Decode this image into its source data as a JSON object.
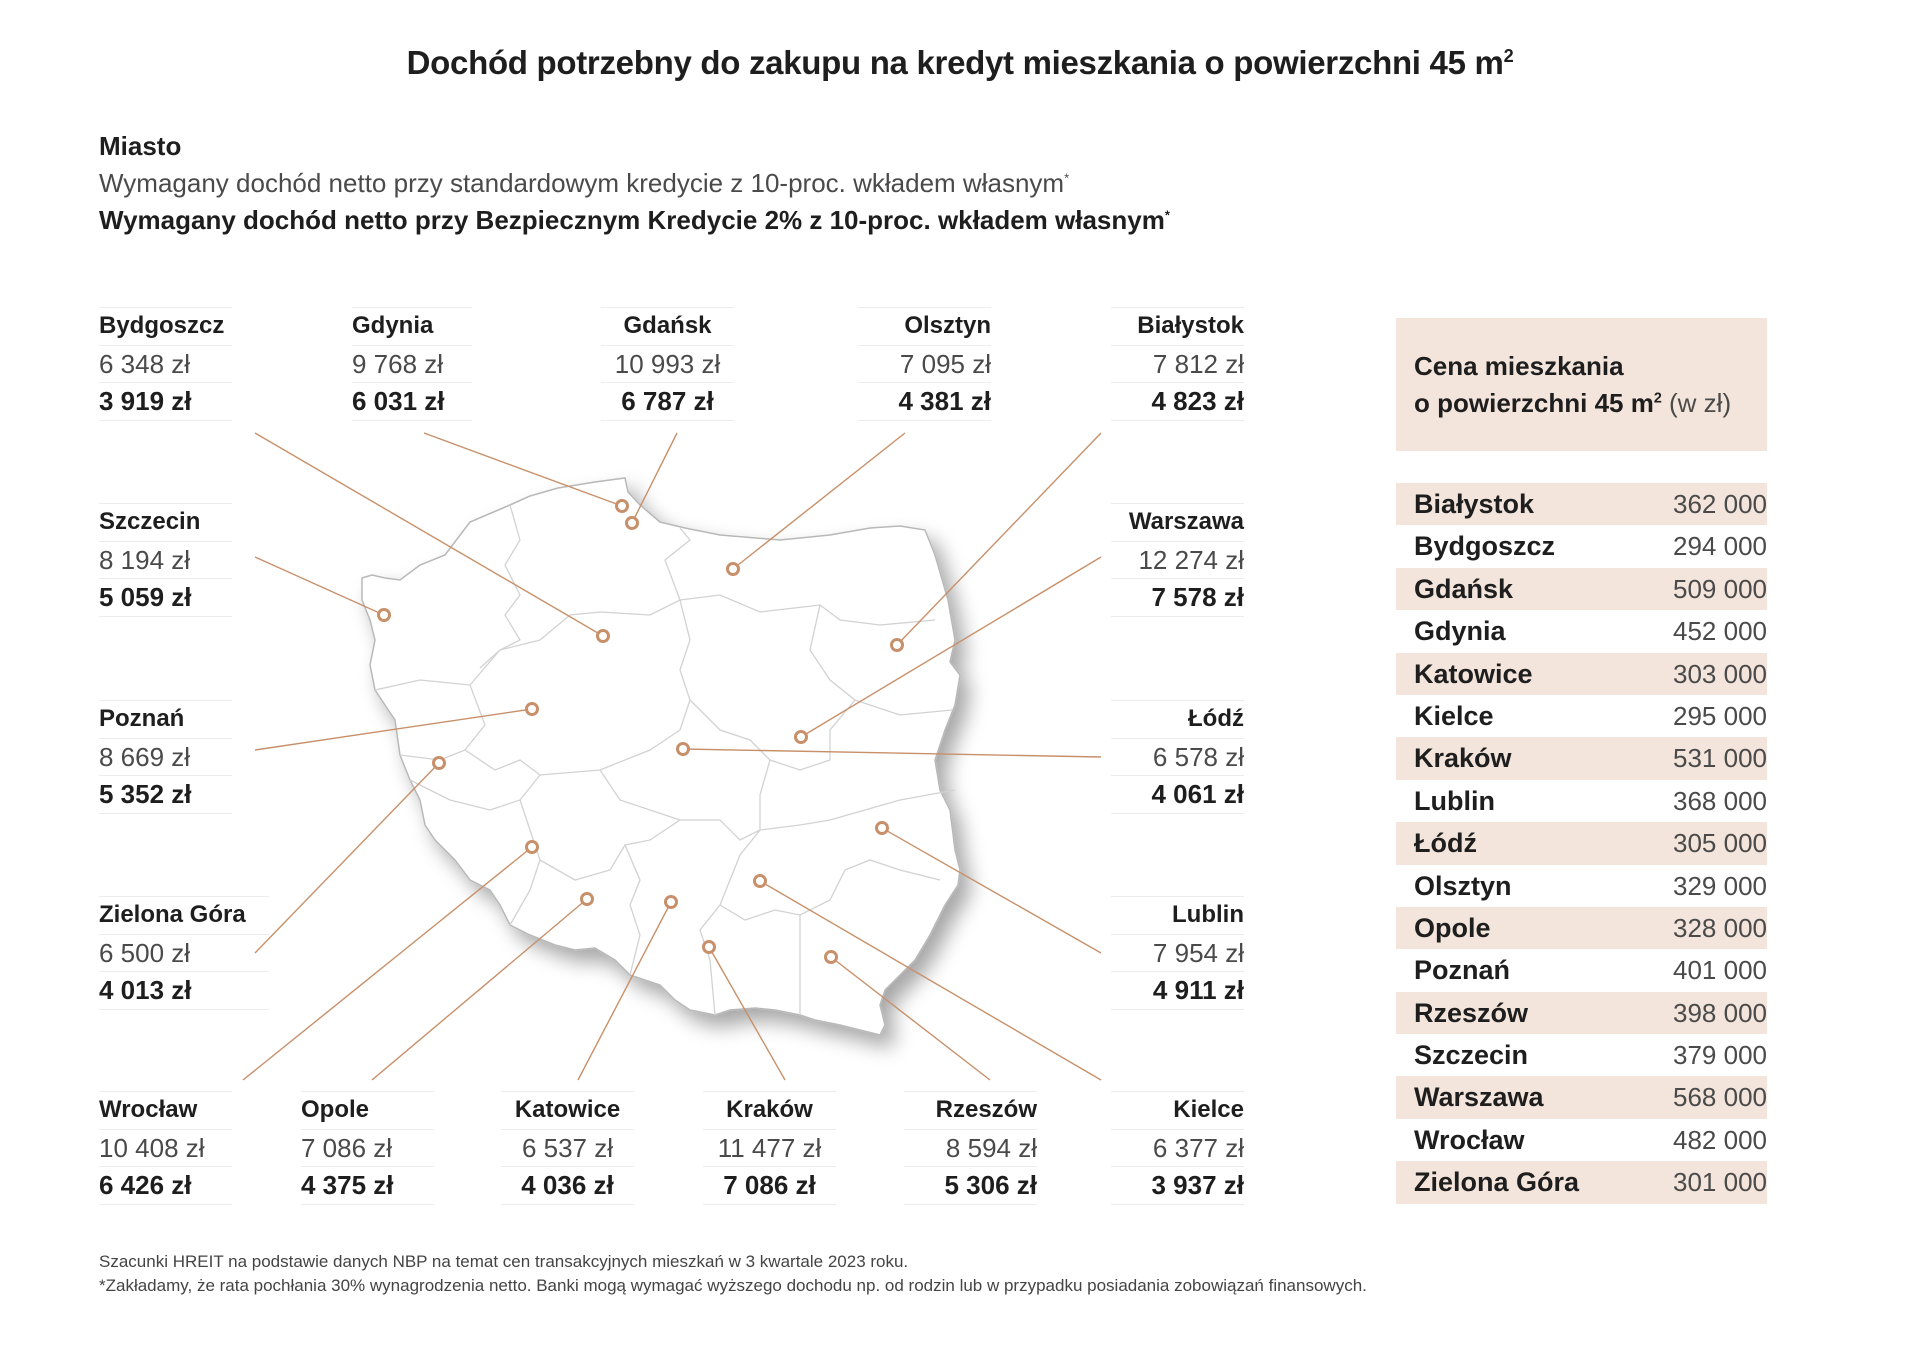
{
  "title": "Dochód potrzebny do zakupu na kredyt mieszkania o powierzchni 45 m",
  "title_sup": "2",
  "legend": {
    "city_label": "Miasto",
    "standard_label": "Wymagany dochód netto przy standardowym kredycie z 10-proc. wkładem własnym",
    "safe_label": "Wymagany dochód netto przy Bezpiecznym Kredycie 2% z 10-proc. wkładem własnym",
    "asterisk": "*"
  },
  "cities": [
    {
      "key": "bydgoszcz",
      "name": "Bydgoszcz",
      "standard": "6 348 zł",
      "safe": "3 919 zł"
    },
    {
      "key": "gdynia",
      "name": "Gdynia",
      "standard": "9 768 zł",
      "safe": "6 031 zł"
    },
    {
      "key": "gdansk",
      "name": "Gdańsk",
      "standard": "10 993 zł",
      "safe": "6 787 zł"
    },
    {
      "key": "olsztyn",
      "name": "Olsztyn",
      "standard": "7 095 zł",
      "safe": "4 381 zł"
    },
    {
      "key": "bialystok",
      "name": "Białystok",
      "standard": "7 812 zł",
      "safe": "4 823 zł"
    },
    {
      "key": "szczecin",
      "name": "Szczecin",
      "standard": "8 194 zł",
      "safe": "5 059 zł"
    },
    {
      "key": "warszawa",
      "name": "Warszawa",
      "standard": "12 274 zł",
      "safe": "7 578 zł"
    },
    {
      "key": "poznan",
      "name": "Poznań",
      "standard": "8 669 zł",
      "safe": "5 352 zł"
    },
    {
      "key": "lodz",
      "name": "Łódź",
      "standard": "6 578 zł",
      "safe": "4 061 zł"
    },
    {
      "key": "zielona_gora",
      "name": "Zielona Góra",
      "standard": "6 500 zł",
      "safe": "4 013 zł"
    },
    {
      "key": "lublin",
      "name": "Lublin",
      "standard": "7 954 zł",
      "safe": "4 911 zł"
    },
    {
      "key": "wroclaw",
      "name": "Wrocław",
      "standard": "10 408 zł",
      "safe": "6 426 zł"
    },
    {
      "key": "opole",
      "name": "Opole",
      "standard": "7 086 zł",
      "safe": "4 375 zł"
    },
    {
      "key": "katowice",
      "name": "Katowice",
      "standard": "6 537 zł",
      "safe": "4 036 zł"
    },
    {
      "key": "krakow",
      "name": "Kraków",
      "standard": "11 477 zł",
      "safe": "7 086 zł"
    },
    {
      "key": "rzeszow",
      "name": "Rzeszów",
      "standard": "8 594 zł",
      "safe": "5 306 zł"
    },
    {
      "key": "kielce",
      "name": "Kielce",
      "standard": "6 377 zł",
      "safe": "3 937 zł"
    }
  ],
  "price_table": {
    "title_line1": "Cena mieszkania",
    "title_line2": "o powierzchni 45 m",
    "title_sup": "2",
    "title_unit": "(w zł)",
    "rows": [
      {
        "city": "Białystok",
        "price": "362 000"
      },
      {
        "city": "Bydgoszcz",
        "price": "294 000"
      },
      {
        "city": "Gdańsk",
        "price": "509 000"
      },
      {
        "city": "Gdynia",
        "price": "452 000"
      },
      {
        "city": "Katowice",
        "price": "303 000"
      },
      {
        "city": "Kielce",
        "price": "295 000"
      },
      {
        "city": "Kraków",
        "price": "531 000"
      },
      {
        "city": "Lublin",
        "price": "368 000"
      },
      {
        "city": "Łódź",
        "price": "305 000"
      },
      {
        "city": "Olsztyn",
        "price": "329 000"
      },
      {
        "city": "Opole",
        "price": "328 000"
      },
      {
        "city": "Poznań",
        "price": "401 000"
      },
      {
        "city": "Rzeszów",
        "price": "398 000"
      },
      {
        "city": "Szczecin",
        "price": "379 000"
      },
      {
        "city": "Warszawa",
        "price": "568 000"
      },
      {
        "city": "Wrocław",
        "price": "482 000"
      },
      {
        "city": "Zielona Góra",
        "price": "301 000"
      }
    ]
  },
  "footer": {
    "line1": "Szacunki HREIT na podstawie danych NBP na temat cen transakcyjnych mieszkań w 3 kwartale 2023 roku.",
    "line2": "*Zakładamy, że rata pochłania 30% wynagrodzenia netto. Banki mogą wymagać wyższego dochodu np. od rodzin lub w przypadku posiadania zobowiązań finansowych."
  },
  "colors": {
    "accent": "#c8906a",
    "table_shade": "#f3e5dc",
    "map_fill": "#ffffff",
    "map_border": "#b8b8b8"
  }
}
